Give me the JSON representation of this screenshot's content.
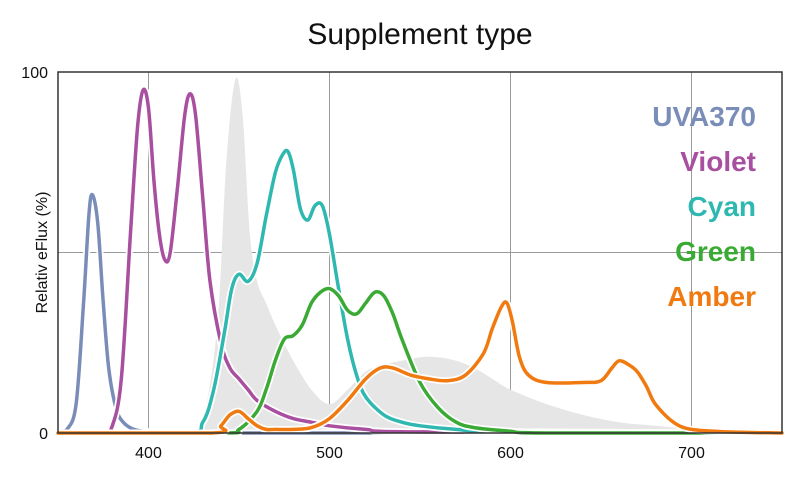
{
  "chart_data": {
    "type": "line",
    "title": "Supplement type",
    "xlabel": "",
    "ylabel": "Relativ eFlux (%)",
    "xlim": [
      350,
      750
    ],
    "ylim": [
      0,
      100
    ],
    "x_ticks": [
      400,
      500,
      600,
      700
    ],
    "y_ticks": [
      0,
      100
    ],
    "grid": true,
    "legend_position": "right",
    "background_area": {
      "name": "",
      "color": "#e6e6e6",
      "x": [
        350,
        420,
        430,
        438,
        443,
        448,
        452,
        456,
        460,
        465,
        470,
        480,
        490,
        500,
        510,
        520,
        530,
        540,
        550,
        560,
        570,
        580,
        590,
        600,
        620,
        640,
        660,
        680,
        700,
        720,
        750
      ],
      "y": [
        0,
        0,
        4,
        30,
        75,
        98,
        88,
        55,
        42,
        36,
        30,
        20,
        12,
        8,
        12,
        17,
        19,
        20,
        21,
        21,
        20,
        18,
        15,
        12,
        8,
        5,
        3,
        2,
        1,
        0.5,
        0
      ]
    },
    "series": [
      {
        "name": "UVA370",
        "color": "#7a8cb8",
        "x": [
          350,
          355,
          360,
          364,
          367,
          369,
          372,
          375,
          378,
          382,
          386,
          392,
          400,
          410,
          420,
          750
        ],
        "y": [
          0,
          1,
          8,
          35,
          60,
          66,
          58,
          36,
          18,
          7,
          3,
          1,
          0.3,
          0,
          0,
          0
        ]
      },
      {
        "name": "Violet",
        "color": "#a84fa0",
        "x": [
          350,
          375,
          380,
          385,
          390,
          394,
          397,
          400,
          403,
          406,
          409,
          412,
          416,
          420,
          423,
          426,
          430,
          434,
          440,
          445,
          450,
          455,
          460,
          470,
          480,
          490,
          500,
          520,
          550,
          750
        ],
        "y": [
          0,
          0,
          2,
          15,
          55,
          85,
          95,
          90,
          70,
          55,
          48,
          50,
          68,
          88,
          94,
          88,
          65,
          42,
          25,
          18,
          15,
          12,
          9,
          6,
          4,
          3,
          2,
          1,
          0.3,
          0
        ]
      },
      {
        "name": "Cyan",
        "color": "#2fb8b0",
        "x": [
          350,
          420,
          430,
          436,
          442,
          446,
          450,
          455,
          460,
          465,
          470,
          474,
          477,
          480,
          484,
          488,
          492,
          496,
          500,
          505,
          510,
          515,
          520,
          530,
          540,
          550,
          570,
          600,
          750
        ],
        "y": [
          0,
          0,
          3,
          12,
          28,
          40,
          44,
          42,
          47,
          60,
          72,
          77,
          78,
          73,
          62,
          59,
          63,
          63,
          55,
          40,
          26,
          16,
          10,
          5,
          3,
          2,
          1,
          0.3,
          0
        ]
      },
      {
        "name": "Green",
        "color": "#3aaa35",
        "x": [
          350,
          440,
          450,
          460,
          465,
          470,
          475,
          480,
          485,
          490,
          495,
          500,
          505,
          510,
          515,
          520,
          525,
          530,
          535,
          540,
          550,
          560,
          570,
          580,
          600,
          620,
          750
        ],
        "y": [
          0,
          0,
          1,
          6,
          12,
          20,
          26,
          27,
          30,
          36,
          39,
          40,
          38,
          34,
          33,
          36,
          39,
          38,
          33,
          26,
          14,
          7,
          3,
          1.5,
          0.5,
          0,
          0
        ]
      },
      {
        "name": "Amber",
        "color": "#f07a10",
        "x": [
          350,
          435,
          440,
          445,
          450,
          455,
          460,
          465,
          470,
          480,
          490,
          500,
          510,
          520,
          528,
          535,
          545,
          555,
          565,
          575,
          585,
          590,
          595,
          598,
          601,
          605,
          610,
          620,
          640,
          650,
          656,
          660,
          665,
          670,
          675,
          680,
          690,
          700,
          720,
          750
        ],
        "y": [
          0,
          0,
          2,
          5,
          6,
          4,
          2,
          1,
          1,
          1,
          1.5,
          4,
          9,
          15,
          18,
          18,
          16,
          15,
          14.5,
          16,
          22,
          29,
          35,
          36,
          31,
          21,
          16,
          14,
          14,
          14.5,
          18,
          20,
          19,
          17,
          13,
          8,
          3,
          1,
          0.3,
          0
        ]
      }
    ]
  }
}
